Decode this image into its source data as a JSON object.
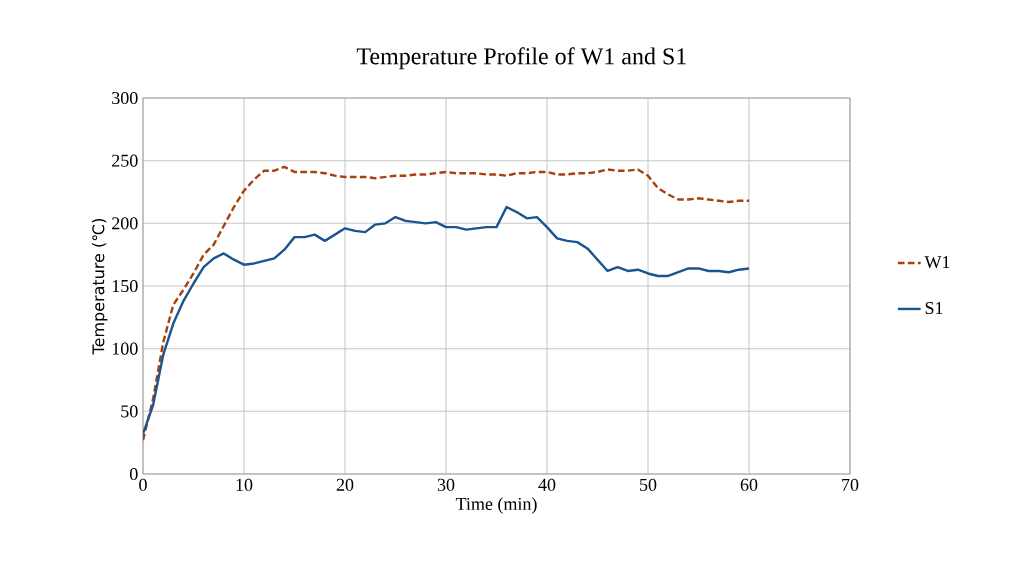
{
  "chart_data": {
    "type": "line",
    "title": "Temperature Profile of  W1 and S1",
    "xlabel": "Time (min)",
    "ylabel": "Temperature (℃)",
    "x": [
      0,
      1,
      2,
      3,
      4,
      5,
      6,
      7,
      8,
      9,
      10,
      11,
      12,
      13,
      14,
      15,
      16,
      17,
      18,
      19,
      20,
      21,
      22,
      23,
      24,
      25,
      26,
      27,
      28,
      29,
      30,
      31,
      32,
      33,
      34,
      35,
      36,
      37,
      38,
      39,
      40,
      41,
      42,
      43,
      44,
      45,
      46,
      47,
      48,
      49,
      50,
      51,
      52,
      53,
      54,
      55,
      56,
      57,
      58,
      59,
      60
    ],
    "series": [
      {
        "name": "W1",
        "color": "#a9400f",
        "line_style": "dashed",
        "values": [
          27,
          60,
          105,
          135,
          147,
          160,
          175,
          183,
          198,
          213,
          226,
          235,
          242,
          242,
          245,
          241,
          241,
          241,
          240,
          238,
          237,
          237,
          237,
          236,
          237,
          238,
          238,
          239,
          239,
          240,
          241,
          240,
          240,
          240,
          239,
          239,
          238,
          240,
          240,
          241,
          241,
          239,
          239,
          240,
          240,
          241,
          243,
          242,
          242,
          243,
          238,
          228,
          223,
          219,
          219,
          220,
          219,
          218,
          217,
          218,
          218
        ]
      },
      {
        "name": "S1",
        "color": "#1b5590",
        "line_style": "solid",
        "values": [
          32,
          55,
          95,
          120,
          138,
          152,
          165,
          172,
          176,
          171,
          167,
          168,
          170,
          172,
          179,
          189,
          189,
          191,
          186,
          191,
          196,
          194,
          193,
          199,
          200,
          205,
          202,
          201,
          200,
          201,
          197,
          197,
          195,
          196,
          197,
          197,
          213,
          209,
          204,
          205,
          197,
          188,
          186,
          185,
          180,
          171,
          162,
          165,
          162,
          163,
          160,
          158,
          158,
          161,
          164,
          164,
          162,
          162,
          161,
          163,
          164
        ]
      }
    ],
    "xlim": [
      0,
      70
    ],
    "xticks": [
      0,
      10,
      20,
      30,
      40,
      50,
      60,
      70
    ],
    "ylim": [
      0,
      300
    ],
    "yticks": [
      0,
      50,
      100,
      150,
      200,
      250,
      300
    ],
    "grid": true,
    "legend": "right",
    "marker": "none"
  }
}
